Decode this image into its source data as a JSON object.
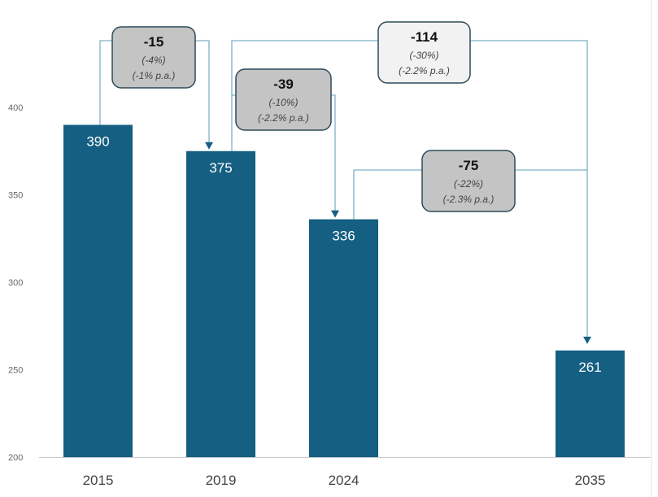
{
  "chart_data": {
    "type": "bar",
    "title": "",
    "xlabel": "",
    "ylabel": "",
    "categories": [
      "2015",
      "2019",
      "2024",
      "2035"
    ],
    "values": [
      390,
      375,
      336,
      261
    ],
    "data_labels": [
      "390",
      "375",
      "336",
      "261"
    ],
    "ylim": [
      200,
      400
    ],
    "yticks": [
      "200",
      "250",
      "300",
      "350",
      "400"
    ],
    "grid": false,
    "legend": "none",
    "bar_color": "#155f82",
    "connector_color": "#7fb0c8",
    "annotations": [
      {
        "from": "2015",
        "to": "2019",
        "value": "-15",
        "pct": "(-4%)",
        "pa": "(-1% p.a.)",
        "fill": "#c4c4c4"
      },
      {
        "from": "2019",
        "to": "2024",
        "value": "-39",
        "pct": "(-10%)",
        "pa": "(-2.2% p.a.)",
        "fill": "#c4c4c4"
      },
      {
        "from": "2019",
        "to": "2035",
        "value": "-114",
        "pct": "(-30%)",
        "pa": "(-2.2% p.a.)",
        "fill": "#f2f2f2"
      },
      {
        "from": "2024",
        "to": "2035",
        "value": "-75",
        "pct": "(-22%)",
        "pa": "(-2.3% p.a.)",
        "fill": "#c4c4c4"
      }
    ]
  }
}
